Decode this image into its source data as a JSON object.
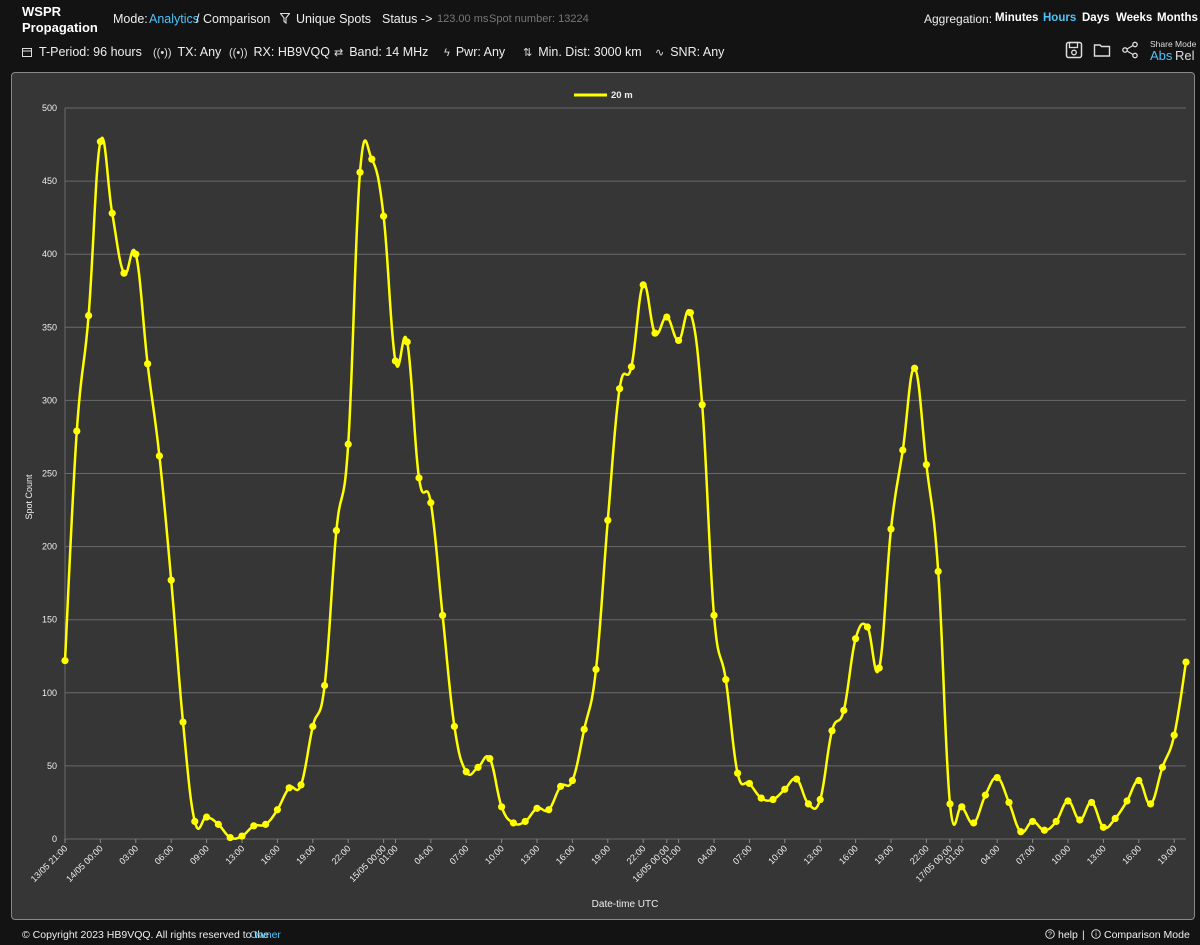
{
  "app": {
    "title_line1": "WSPR",
    "title_line2": "Propagation"
  },
  "header": {
    "mode_label": "Mode:",
    "mode_analytics": "Analytics",
    "mode_sep": "/",
    "mode_comparison": "Comparison",
    "unique_spots": "Unique Spots",
    "status_label": "Status ->",
    "status_time": "123.00 ms",
    "spot_number": "Spot number: 13224",
    "aggregation_label": "Aggregation:",
    "agg_options": [
      "Minutes",
      "Hours",
      "Days",
      "Weeks",
      "Months"
    ],
    "agg_selected": "Hours",
    "share_mode_label": "Share Mode",
    "abs_label": "Abs",
    "rel_label": "Rel"
  },
  "filters": {
    "period": "T-Period: 96 hours",
    "tx": "TX: Any",
    "rx": "RX: HB9VQQ",
    "band": "Band: 14 MHz",
    "pwr": "Pwr: Any",
    "min_dist": "Min. Dist: 3000 km",
    "snr": "SNR: Any"
  },
  "icons": [
    "calendar-icon",
    "tx-antenna-icon",
    "rx-antenna-icon",
    "band-arrows-icon",
    "power-bolt-icon",
    "distance-icon",
    "snr-wave-icon",
    "save-icon",
    "folder-icon",
    "share-icon",
    "filter-icon",
    "help-icon",
    "info-icon"
  ],
  "colors": {
    "accent": "#4fc3f7",
    "series": "#ffff00",
    "background": "#131313",
    "chart_bg": "#363636"
  },
  "footer": {
    "copyright": "© Copyright 2023 HB9VQQ. All rights reserved to the",
    "owner_link": "Owner",
    "help": "help",
    "sep": "|",
    "comparison_mode": "Comparison Mode"
  },
  "chart_data": {
    "type": "line",
    "xlabel": "Date-time UTC",
    "ylabel": "Spot Count",
    "ylim": [
      0,
      500
    ],
    "yticks": [
      0,
      50,
      100,
      150,
      200,
      250,
      300,
      350,
      400,
      450,
      500
    ],
    "grid": true,
    "legend_position": "top-center",
    "x_tick_labels": [
      {
        "i": 0,
        "label": "13/05 21:00"
      },
      {
        "i": 3,
        "label": "14/05 00:00"
      },
      {
        "i": 6,
        "label": "03:00"
      },
      {
        "i": 9,
        "label": "06:00"
      },
      {
        "i": 12,
        "label": "09:00"
      },
      {
        "i": 15,
        "label": "13:00"
      },
      {
        "i": 18,
        "label": "16:00"
      },
      {
        "i": 21,
        "label": "19:00"
      },
      {
        "i": 24,
        "label": "22:00"
      },
      {
        "i": 27,
        "label": "15/05 00:00"
      },
      {
        "i": 28,
        "label": "01:00"
      },
      {
        "i": 31,
        "label": "04:00"
      },
      {
        "i": 34,
        "label": "07:00"
      },
      {
        "i": 37,
        "label": "10:00"
      },
      {
        "i": 40,
        "label": "13:00"
      },
      {
        "i": 43,
        "label": "16:00"
      },
      {
        "i": 46,
        "label": "19:00"
      },
      {
        "i": 49,
        "label": "22:00"
      },
      {
        "i": 51,
        "label": "16/05 00:00"
      },
      {
        "i": 52,
        "label": "01:00"
      },
      {
        "i": 55,
        "label": "04:00"
      },
      {
        "i": 58,
        "label": "07:00"
      },
      {
        "i": 61,
        "label": "10:00"
      },
      {
        "i": 64,
        "label": "13:00"
      },
      {
        "i": 67,
        "label": "16:00"
      },
      {
        "i": 70,
        "label": "19:00"
      },
      {
        "i": 73,
        "label": "22:00"
      },
      {
        "i": 75,
        "label": "17/05 00:00"
      },
      {
        "i": 76,
        "label": "01:00"
      },
      {
        "i": 79,
        "label": "04:00"
      },
      {
        "i": 82,
        "label": "07:00"
      },
      {
        "i": 85,
        "label": "10:00"
      },
      {
        "i": 88,
        "label": "13:00"
      },
      {
        "i": 91,
        "label": "16:00"
      },
      {
        "i": 94,
        "label": "19:00"
      }
    ],
    "series": [
      {
        "name": "20 m",
        "color": "#ffff00",
        "values": [
          122,
          279,
          358,
          477,
          428,
          387,
          400,
          325,
          262,
          177,
          80,
          12,
          15,
          10,
          1,
          2,
          9,
          10,
          20,
          35,
          37,
          77,
          105,
          211,
          270,
          456,
          465,
          426,
          327,
          340,
          247,
          230,
          153,
          77,
          46,
          49,
          55,
          22,
          11,
          12,
          21,
          20,
          36,
          40,
          75,
          116,
          218,
          308,
          323,
          379,
          346,
          357,
          341,
          360,
          297,
          153,
          109,
          45,
          38,
          28,
          27,
          34,
          41,
          24,
          27,
          74,
          88,
          137,
          145,
          117,
          212,
          266,
          322,
          256,
          183,
          24,
          22,
          11,
          30,
          42,
          25,
          5,
          12,
          6,
          12,
          26,
          13,
          25,
          8,
          14,
          26,
          40,
          24,
          49,
          71,
          121
        ]
      }
    ]
  }
}
